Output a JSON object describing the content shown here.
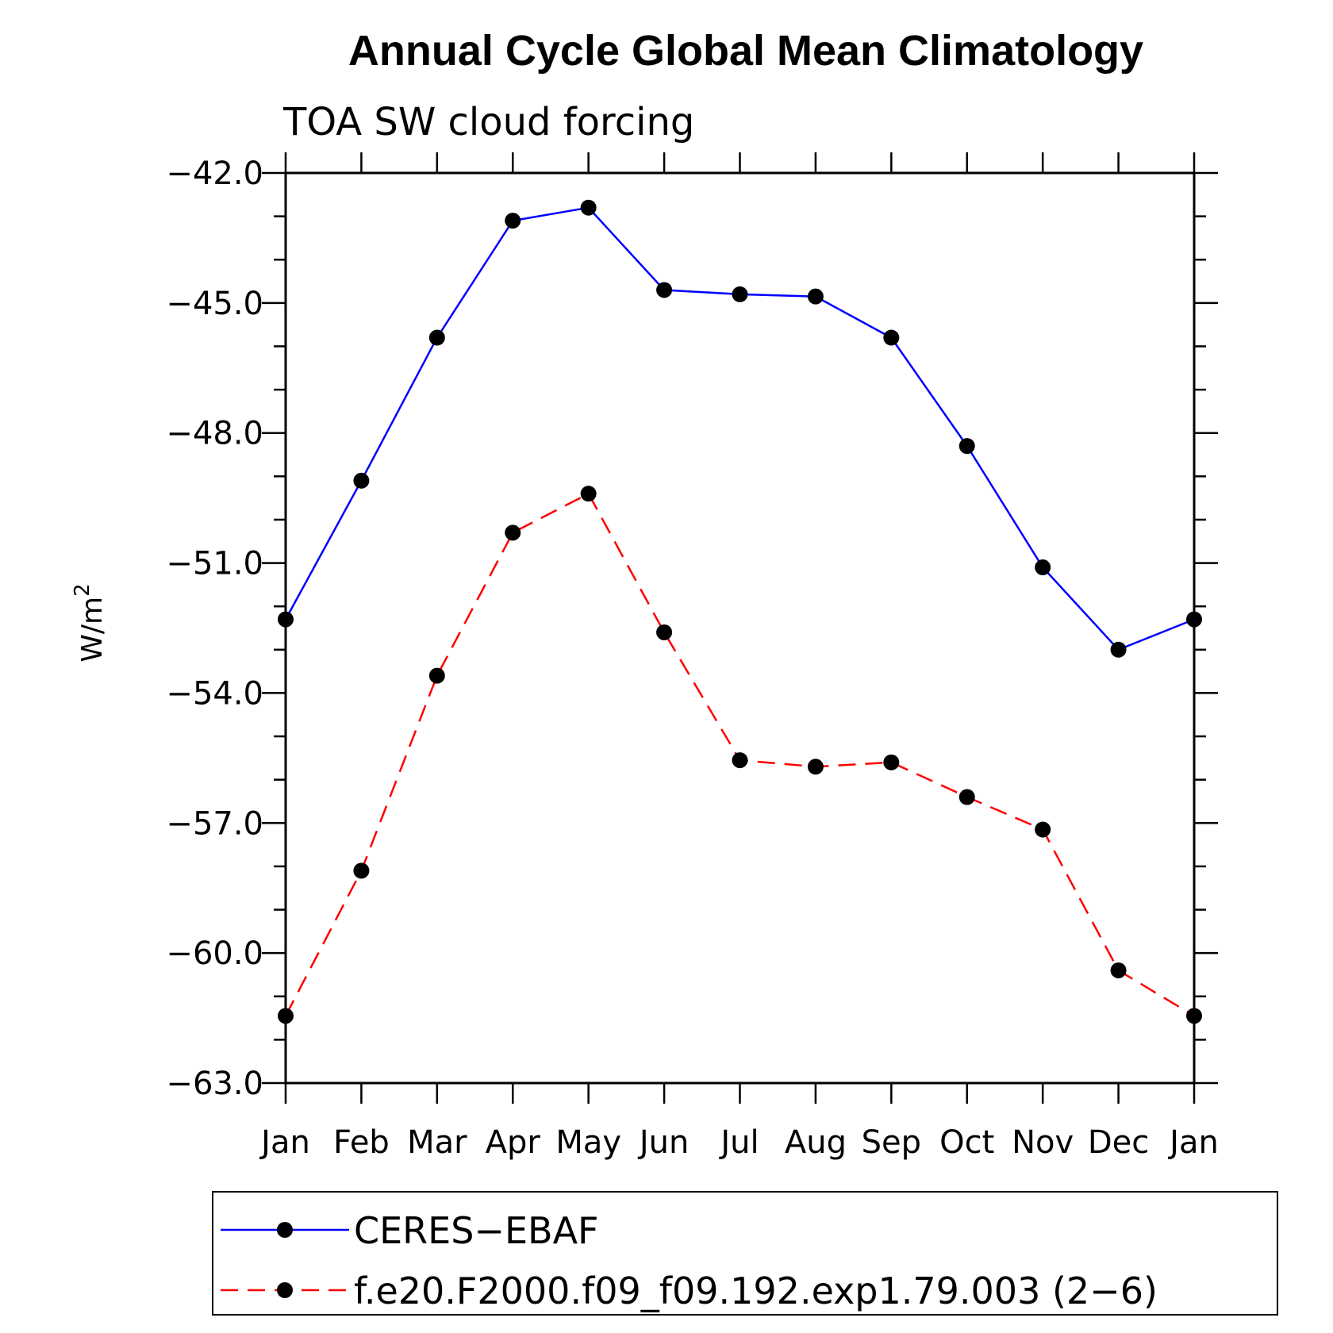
{
  "chart_data": {
    "type": "line",
    "title": "Annual Cycle Global Mean Climatology",
    "subtitle": "TOA SW cloud forcing",
    "ylabel": "W/m",
    "ylabel_superscript": "2",
    "xlabel": "",
    "categories": [
      "Jan",
      "Feb",
      "Mar",
      "Apr",
      "May",
      "Jun",
      "Jul",
      "Aug",
      "Sep",
      "Oct",
      "Nov",
      "Dec",
      "Jan"
    ],
    "ylim": [
      -63.0,
      -42.0
    ],
    "yticks": [
      -42.0,
      -45.0,
      -48.0,
      -51.0,
      -54.0,
      -57.0,
      -60.0,
      -63.0
    ],
    "ytick_labels": [
      "−42.0",
      "−45.0",
      "−48.0",
      "−51.0",
      "−54.0",
      "−57.0",
      "−60.0",
      "−63.0"
    ],
    "y_minor_step": 1.0,
    "grid": false,
    "legend_position": "bottom",
    "series": [
      {
        "name": "CERES−EBAF",
        "color": "#0000ff",
        "line_style": "solid",
        "marker": "filled-circle",
        "values": [
          -52.3,
          -49.1,
          -45.8,
          -43.1,
          -42.8,
          -44.7,
          -44.8,
          -44.85,
          -45.8,
          -48.3,
          -51.1,
          -53.0,
          -52.3
        ]
      },
      {
        "name": "f.e20.F2000.f09_f09.192.exp1.79.003 (2−6)",
        "color": "#ff0000",
        "line_style": "dashed",
        "marker": "filled-circle",
        "values": [
          -61.45,
          -58.1,
          -53.6,
          -50.3,
          -49.4,
          -52.6,
          -55.55,
          -55.7,
          -55.6,
          -56.4,
          -57.15,
          -60.4,
          -61.45
        ]
      }
    ]
  }
}
